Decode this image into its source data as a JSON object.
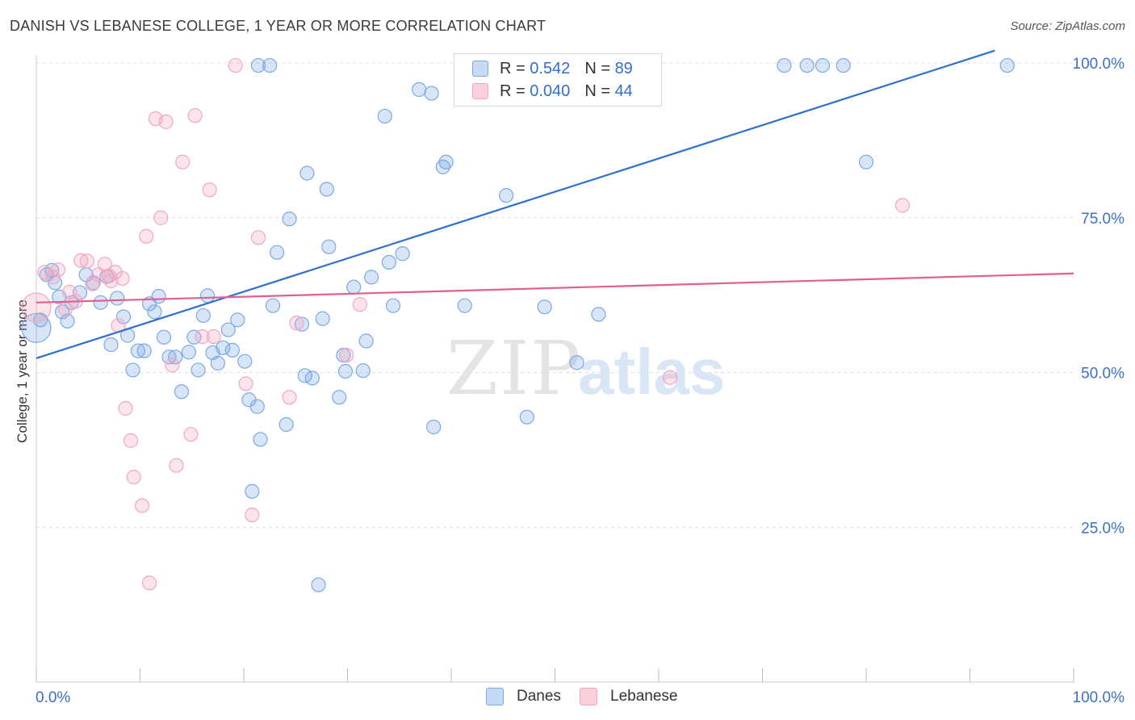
{
  "title": "DANISH VS LEBANESE COLLEGE, 1 YEAR OR MORE CORRELATION CHART",
  "source": "Source: ZipAtlas.com",
  "watermark": {
    "zip": "ZIP",
    "atlas": "atlas"
  },
  "legend_stats": [
    {
      "r_label": "R =",
      "r_value": "0.542",
      "n_label": "N =",
      "n_value": "89"
    },
    {
      "r_label": "R =",
      "r_value": "0.040",
      "n_label": "N =",
      "n_value": "44"
    }
  ],
  "chart_data": {
    "type": "scatter",
    "title": "DANISH VS LEBANESE COLLEGE, 1 YEAR OR MORE CORRELATION CHART",
    "xlabel": "",
    "ylabel": "College, 1 year or more",
    "xlim": [
      0,
      100
    ],
    "ylim": [
      0,
      100
    ],
    "x_tick_labels": [
      "0.0%",
      "100.0%"
    ],
    "y_tick_labels": [
      "100.0%",
      "75.0%",
      "50.0%",
      "25.0%"
    ],
    "y_ticks": [
      100,
      75,
      50,
      25
    ],
    "grid": true,
    "legend_position": "bottom",
    "series": [
      {
        "name": "Danes",
        "color": "#7aa9e6",
        "line_color": "#2f6fcf",
        "trend": [
          [
            0,
            52.3
          ],
          [
            92.4,
            102.0
          ]
        ],
        "points": [
          [
            0.4,
            58.5
          ],
          [
            1.0,
            65.8
          ],
          [
            1.5,
            66.5
          ],
          [
            1.8,
            64.5
          ],
          [
            2.2,
            62.2
          ],
          [
            2.5,
            59.8
          ],
          [
            3.0,
            58.3
          ],
          [
            3.4,
            61.3
          ],
          [
            4.2,
            62.9
          ],
          [
            4.8,
            65.8
          ],
          [
            5.5,
            64.5
          ],
          [
            6.2,
            61.3
          ],
          [
            6.8,
            65.5
          ],
          [
            7.2,
            54.5
          ],
          [
            7.8,
            62.0
          ],
          [
            8.4,
            59.0
          ],
          [
            8.8,
            56.0
          ],
          [
            9.3,
            50.4
          ],
          [
            9.8,
            53.5
          ],
          [
            10.4,
            53.5
          ],
          [
            10.9,
            61.1
          ],
          [
            11.4,
            59.8
          ],
          [
            11.8,
            62.3
          ],
          [
            12.3,
            55.7
          ],
          [
            12.8,
            52.5
          ],
          [
            13.4,
            52.5
          ],
          [
            14.0,
            46.9
          ],
          [
            14.7,
            53.3
          ],
          [
            15.2,
            55.7
          ],
          [
            15.6,
            50.4
          ],
          [
            16.1,
            59.2
          ],
          [
            16.5,
            62.4
          ],
          [
            17.0,
            53.2
          ],
          [
            17.5,
            51.5
          ],
          [
            18.0,
            54.0
          ],
          [
            18.5,
            56.9
          ],
          [
            18.9,
            53.6
          ],
          [
            19.4,
            58.5
          ],
          [
            20.1,
            51.8
          ],
          [
            20.5,
            45.6
          ],
          [
            21.3,
            44.5
          ],
          [
            21.6,
            39.2
          ],
          [
            20.8,
            30.8
          ],
          [
            22.8,
            60.8
          ],
          [
            23.2,
            69.4
          ],
          [
            24.1,
            41.6
          ],
          [
            24.4,
            74.8
          ],
          [
            25.6,
            57.8
          ],
          [
            25.9,
            49.5
          ],
          [
            26.1,
            82.2
          ],
          [
            26.6,
            49.1
          ],
          [
            27.2,
            15.7
          ],
          [
            27.6,
            58.7
          ],
          [
            28.0,
            79.6
          ],
          [
            28.2,
            70.3
          ],
          [
            29.2,
            46.0
          ],
          [
            29.6,
            52.8
          ],
          [
            29.8,
            50.2
          ],
          [
            30.6,
            63.8
          ],
          [
            31.5,
            50.3
          ],
          [
            31.8,
            55.1
          ],
          [
            32.3,
            65.4
          ],
          [
            33.6,
            91.4
          ],
          [
            34.0,
            67.8
          ],
          [
            34.4,
            60.8
          ],
          [
            35.3,
            69.2
          ],
          [
            36.9,
            95.7
          ],
          [
            38.1,
            95.1
          ],
          [
            38.3,
            41.2
          ],
          [
            39.2,
            83.2
          ],
          [
            39.5,
            84.0
          ],
          [
            41.3,
            60.8
          ],
          [
            45.3,
            78.6
          ],
          [
            47.3,
            42.8
          ],
          [
            49.0,
            60.6
          ],
          [
            52.1,
            51.6
          ],
          [
            54.2,
            59.4
          ],
          [
            72.1,
            99.6
          ],
          [
            74.3,
            99.6
          ],
          [
            75.8,
            99.6
          ],
          [
            77.8,
            99.6
          ],
          [
            80.0,
            84.0
          ],
          [
            93.6,
            99.6
          ],
          [
            21.4,
            99.6
          ],
          [
            22.5,
            99.6
          ],
          [
            43.0,
            99.6
          ],
          [
            45.6,
            99.6
          ],
          [
            56.0,
            99.6
          ],
          [
            0.0,
            57.2
          ]
        ]
      },
      {
        "name": "Lebanese",
        "color": "#f2a7bf",
        "line_color": "#e2608d",
        "trend": [
          [
            0,
            61.3
          ],
          [
            100,
            66.0
          ]
        ],
        "points": [
          [
            0.0,
            60.5
          ],
          [
            0.8,
            66.2
          ],
          [
            1.6,
            65.4
          ],
          [
            2.1,
            66.6
          ],
          [
            2.8,
            60.2
          ],
          [
            3.2,
            63.0
          ],
          [
            3.8,
            61.5
          ],
          [
            4.3,
            68.1
          ],
          [
            4.9,
            68.0
          ],
          [
            5.4,
            64.3
          ],
          [
            6.0,
            65.8
          ],
          [
            6.6,
            67.5
          ],
          [
            7.0,
            65.6
          ],
          [
            7.2,
            64.8
          ],
          [
            7.6,
            66.2
          ],
          [
            7.9,
            57.6
          ],
          [
            8.3,
            65.2
          ],
          [
            8.6,
            44.2
          ],
          [
            9.1,
            39.0
          ],
          [
            9.4,
            33.1
          ],
          [
            10.2,
            28.5
          ],
          [
            10.6,
            72.0
          ],
          [
            10.9,
            16.0
          ],
          [
            11.5,
            91.0
          ],
          [
            12.0,
            75.0
          ],
          [
            12.5,
            90.5
          ],
          [
            13.1,
            51.2
          ],
          [
            13.5,
            35.0
          ],
          [
            14.1,
            84.0
          ],
          [
            14.9,
            40.0
          ],
          [
            15.3,
            91.5
          ],
          [
            16.0,
            55.8
          ],
          [
            16.7,
            79.5
          ],
          [
            17.1,
            55.8
          ],
          [
            19.2,
            99.6
          ],
          [
            20.2,
            48.2
          ],
          [
            20.8,
            27.0
          ],
          [
            21.4,
            71.8
          ],
          [
            24.4,
            46.0
          ],
          [
            25.1,
            58.0
          ],
          [
            29.9,
            52.8
          ],
          [
            31.2,
            61.0
          ],
          [
            61.1,
            49.2
          ],
          [
            83.5,
            77.0
          ]
        ]
      }
    ]
  }
}
